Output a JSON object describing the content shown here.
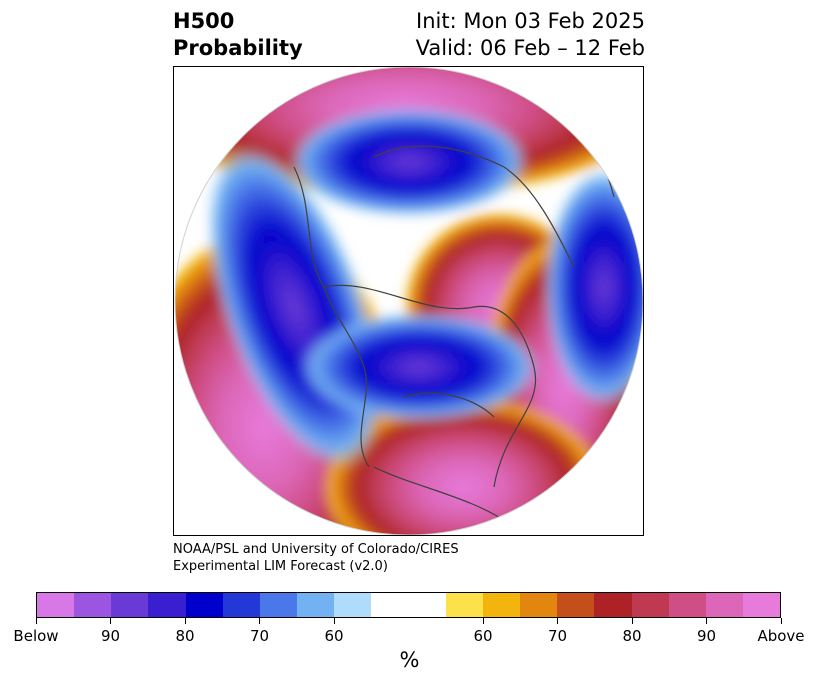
{
  "header": {
    "title_line1": "H500",
    "title_line2": "Probability",
    "init": "Init: Mon 03 Feb 2025",
    "valid": "Valid: 06 Feb – 12 Feb"
  },
  "credit": {
    "line1": "NOAA/PSL and University of Colorado/CIRES",
    "line2": "Experimental LIM Forecast (v2.0)"
  },
  "colorbar": {
    "colors": [
      "#d877e6",
      "#9b55e0",
      "#6a3ad6",
      "#3a1fd0",
      "#0000cc",
      "#2438d8",
      "#4a78e8",
      "#72b2f2",
      "#aedcfa",
      "#ffffff",
      "#ffffff",
      "#fde14a",
      "#f3b40e",
      "#e2860f",
      "#c44f1a",
      "#ae2127",
      "#bf3a50",
      "#cf4e86",
      "#dc67b8",
      "#e77adb"
    ],
    "tick_labels": [
      "Below",
      "90",
      "80",
      "70",
      "60",
      "60",
      "70",
      "80",
      "90",
      "Above"
    ],
    "unit": "%"
  }
}
